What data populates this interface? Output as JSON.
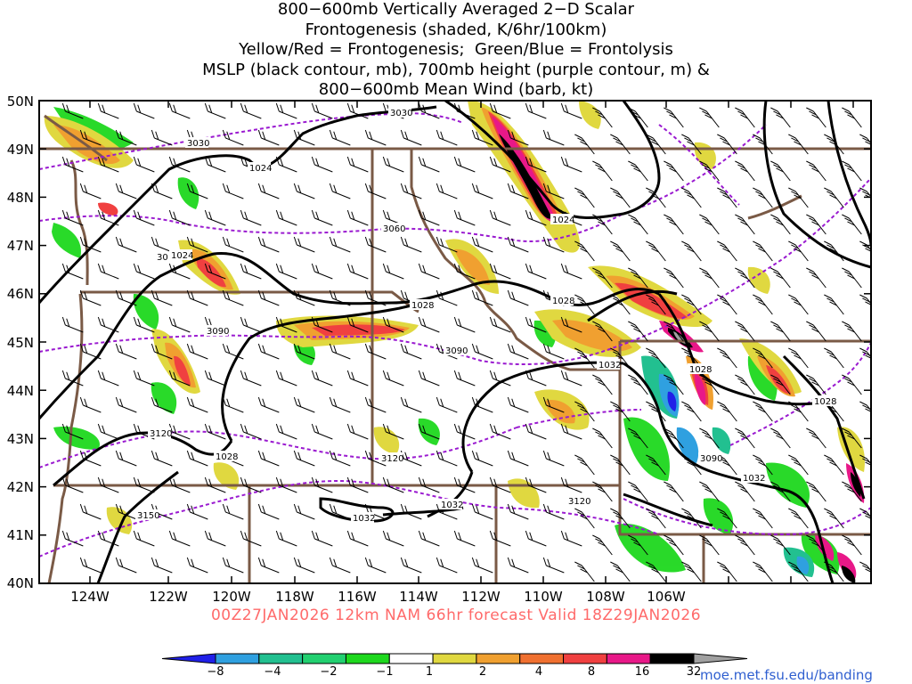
{
  "title_lines": [
    "800−600mb Vertically Averaged 2−D Scalar",
    "Frontogenesis (shaded, K/6hr/100km)",
    "Yellow/Red = Frontogenesis;  Green/Blue = Frontolysis",
    "MSLP (black contour, mb), 700mb height (purple contour, m) &",
    "800−600mb Mean Wind (barb, kt)"
  ],
  "footer": "00Z27JAN2026 12km NAM 66hr forecast Valid 18Z29JAN2026",
  "credit": "moe.met.fsu.edu/banding",
  "lat_labels": [
    "50N",
    "49N",
    "48N",
    "47N",
    "46N",
    "45N",
    "44N",
    "43N",
    "42N",
    "41N",
    "40N"
  ],
  "lon_labels": [
    "124W",
    "122W",
    "120W",
    "118W",
    "116W",
    "114W",
    "112W",
    "110W",
    "108W",
    "106W"
  ],
  "colorbar": {
    "labels": [
      "−8",
      "−4",
      "−2",
      "−1",
      "1",
      "2",
      "4",
      "8",
      "16",
      "32"
    ],
    "colors": [
      "#2020e8",
      "#2fa0e0",
      "#22c090",
      "#22d070",
      "#1ed81e",
      "#ffffff",
      "#e0d840",
      "#f0a030",
      "#f07030",
      "#f04040",
      "#e81888",
      "#000000",
      "#a0a0a0"
    ]
  },
  "mslp_labels": [
    "1024",
    "1024",
    "1024",
    "1028",
    "1028",
    "1032",
    "1028",
    "1028",
    "1032",
    "1032",
    "1028",
    "1032",
    "1028"
  ],
  "height_labels": [
    "3030",
    "3030",
    "3060",
    "3090",
    "3090",
    "3120",
    "3120",
    "3120",
    "3150",
    "3090",
    "30"
  ],
  "colors": {
    "mslp": "#000000",
    "height": "#9a1ad0",
    "borders": "#7a5a46",
    "footer": "#ff6a6a",
    "credit": "#2f5fd0"
  }
}
